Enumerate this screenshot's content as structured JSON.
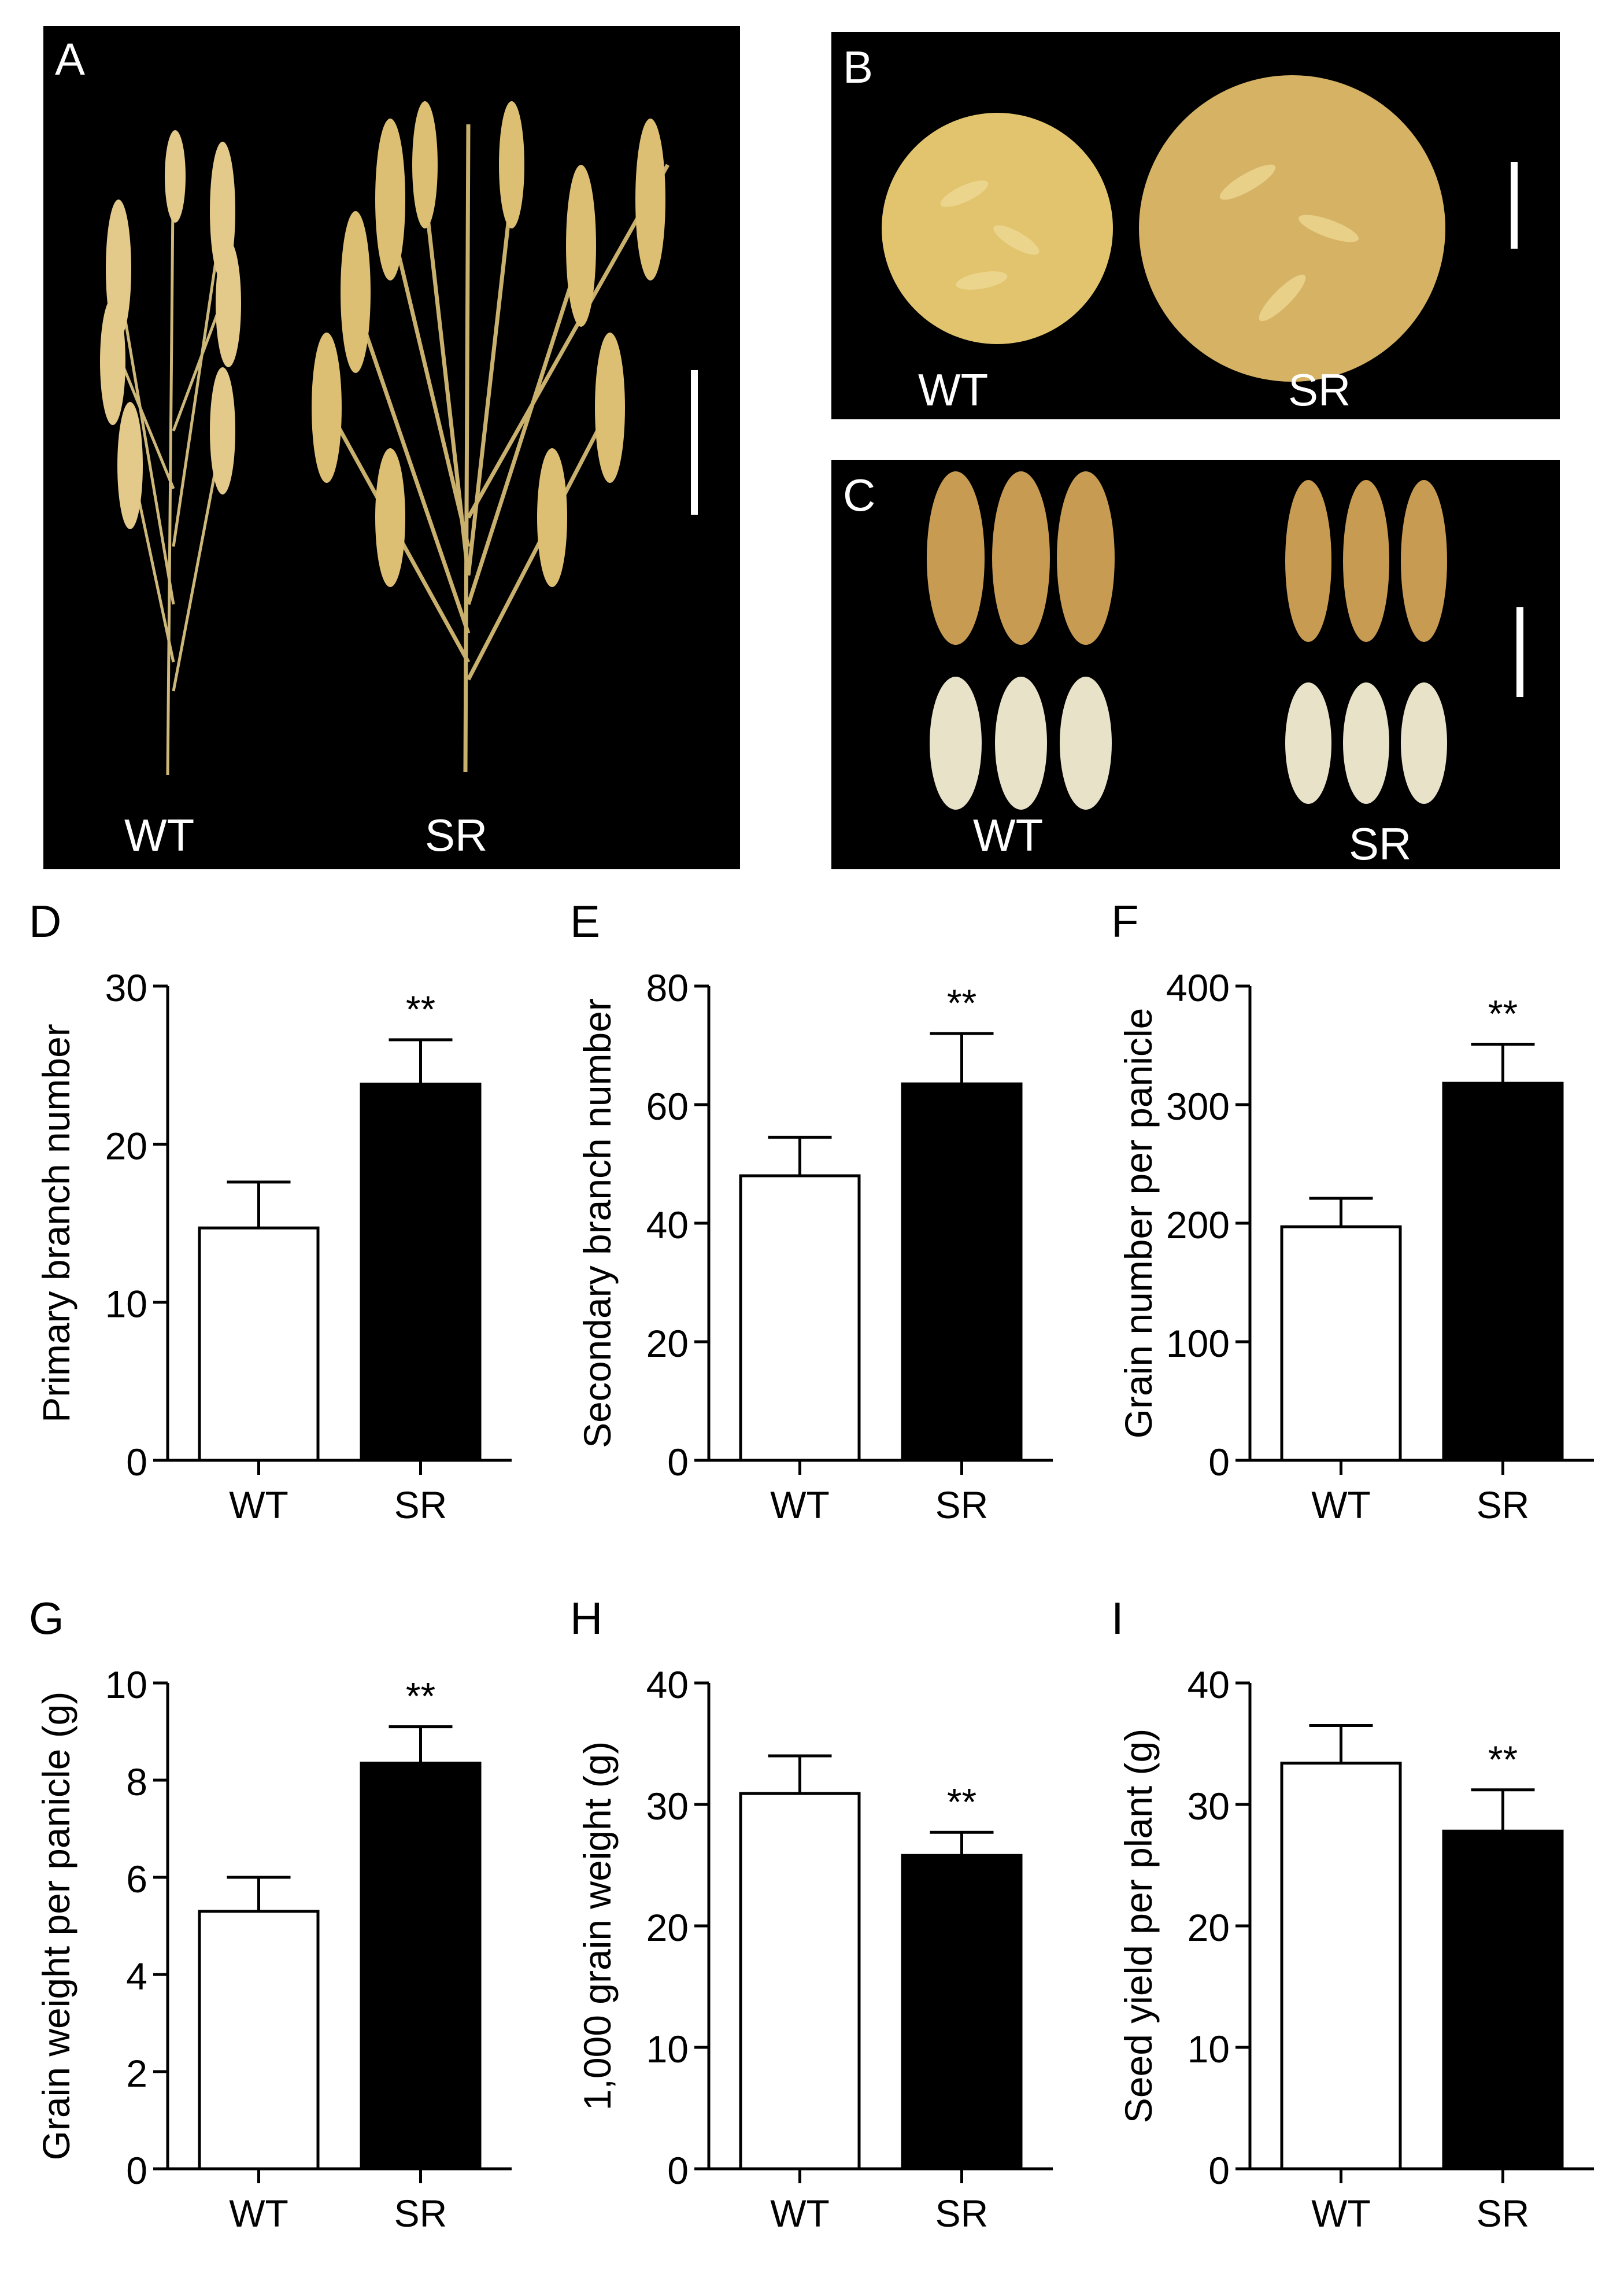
{
  "photos": [
    {
      "id": "A",
      "panel_label": "A",
      "labels": [
        "WT",
        "SR"
      ]
    },
    {
      "id": "B",
      "panel_label": "B",
      "labels": [
        "WT",
        "SR"
      ]
    },
    {
      "id": "C",
      "panel_label": "C",
      "labels": [
        "WT",
        "SR"
      ]
    }
  ],
  "chart_data": [
    {
      "panel": "D",
      "type": "bar",
      "categories": [
        "WT",
        "SR"
      ],
      "values": [
        14.7,
        23.8
      ],
      "errors": [
        2.9,
        2.8
      ],
      "ylabel": "Primary branch number",
      "ylim": [
        0,
        30
      ],
      "yticks": [
        0,
        10,
        20,
        30
      ],
      "significance": [
        "",
        "**"
      ],
      "colors": [
        "#ffffff",
        "#000000"
      ]
    },
    {
      "panel": "E",
      "type": "bar",
      "categories": [
        "WT",
        "SR"
      ],
      "values": [
        48,
        63.5
      ],
      "errors": [
        6.5,
        8.5
      ],
      "ylabel": "Secondary branch number",
      "ylim": [
        0,
        80
      ],
      "yticks": [
        0,
        20,
        40,
        60,
        80
      ],
      "significance": [
        "",
        "**"
      ],
      "colors": [
        "#ffffff",
        "#000000"
      ]
    },
    {
      "panel": "F",
      "type": "bar",
      "categories": [
        "WT",
        "SR"
      ],
      "values": [
        197,
        318
      ],
      "errors": [
        24,
        33
      ],
      "ylabel": "Grain number per panicle",
      "ylim": [
        0,
        400
      ],
      "yticks": [
        0,
        100,
        200,
        300,
        400
      ],
      "significance": [
        "",
        "**"
      ],
      "colors": [
        "#ffffff",
        "#000000"
      ]
    },
    {
      "panel": "G",
      "type": "bar",
      "categories": [
        "WT",
        "SR"
      ],
      "values": [
        5.3,
        8.35
      ],
      "errors": [
        0.7,
        0.75
      ],
      "ylabel": "Grain weight per panicle (g)",
      "ylim": [
        0,
        10
      ],
      "yticks": [
        0,
        2,
        4,
        6,
        8,
        10
      ],
      "significance": [
        "",
        "**"
      ],
      "colors": [
        "#ffffff",
        "#000000"
      ]
    },
    {
      "panel": "H",
      "type": "bar",
      "categories": [
        "WT",
        "SR"
      ],
      "values": [
        30.9,
        25.8
      ],
      "errors": [
        3.1,
        1.9
      ],
      "ylabel": "1,000 grain weight (g)",
      "ylim": [
        0,
        40
      ],
      "yticks": [
        0,
        10,
        20,
        30,
        40
      ],
      "significance": [
        "",
        "**"
      ],
      "colors": [
        "#ffffff",
        "#000000"
      ]
    },
    {
      "panel": "I",
      "type": "bar",
      "categories": [
        "WT",
        "SR"
      ],
      "values": [
        33.4,
        27.8
      ],
      "errors": [
        3.1,
        3.4
      ],
      "ylabel": "Seed yield per plant (g)",
      "ylim": [
        0,
        40
      ],
      "yticks": [
        0,
        10,
        20,
        30,
        40
      ],
      "significance": [
        "",
        "**"
      ],
      "colors": [
        "#ffffff",
        "#000000"
      ]
    }
  ]
}
